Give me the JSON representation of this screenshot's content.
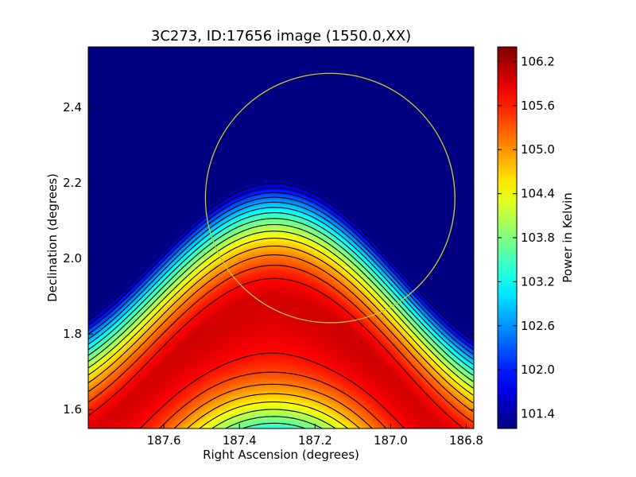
{
  "chart_data": {
    "type": "heatmap",
    "title": "3C273, ID:17656 image (1550.0,XX)",
    "xlabel": "Right Ascension (degrees)",
    "ylabel": "Declination (degrees)",
    "colorbar_label": "Power in Kelvin",
    "xlim": [
      187.8,
      186.78
    ],
    "ylim": [
      1.55,
      2.56
    ],
    "x_ticks": [
      187.6,
      187.4,
      187.2,
      187.0,
      186.8
    ],
    "x_tick_labels": [
      "187.6",
      "187.4",
      "187.2",
      "187.0",
      "186.8"
    ],
    "y_ticks": [
      1.6,
      1.8,
      2.0,
      2.2,
      2.4
    ],
    "y_tick_labels": [
      "1.6",
      "1.8",
      "2.0",
      "2.2",
      "2.4"
    ],
    "colorbar_range": [
      101.2,
      106.4
    ],
    "colorbar_ticks": [
      101.4,
      102.0,
      102.6,
      103.2,
      103.8,
      104.4,
      105.0,
      105.6,
      106.2
    ],
    "colorbar_tick_labels": [
      "101.4",
      "102.0",
      "102.6",
      "103.2",
      "103.8",
      "104.4",
      "105.0",
      "105.6",
      "106.2"
    ],
    "colormap": "jet",
    "peak": {
      "ra": 187.3,
      "dec": 1.68,
      "value": 106.3
    },
    "minimum": {
      "ra": 186.85,
      "dec": 2.55,
      "value": 101.3
    },
    "contour_levels": [
      101.5,
      101.8,
      102.1,
      102.4,
      102.7,
      103.0,
      103.3,
      103.6,
      103.9,
      104.2,
      104.5,
      104.8,
      105.1,
      105.4,
      105.7,
      106.0
    ],
    "contour_color": "#000000",
    "circle": {
      "center_ra": 187.16,
      "center_dec": 2.16,
      "radius_deg": 0.33,
      "color": "#c8c832"
    }
  }
}
